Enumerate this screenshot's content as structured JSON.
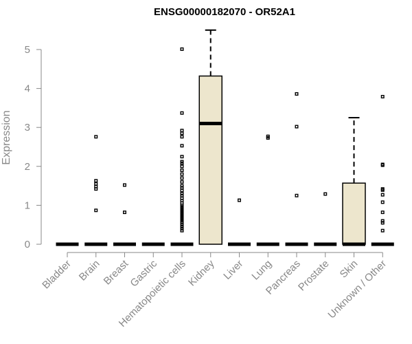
{
  "chart_data": {
    "type": "box",
    "title": "ENSG00000182070 - OR52A1",
    "xlabel": "",
    "ylabel": "Expression",
    "ylim": [
      0,
      5.5
    ],
    "yticks": [
      0,
      1,
      2,
      3,
      4,
      5
    ],
    "box_fill": "#ede6cd",
    "axis_color": "#888888",
    "grid": false,
    "categories": [
      "Bladder",
      "Brain",
      "Breast",
      "Gastric",
      "Hematopoietic cells",
      "Kidney",
      "Liver",
      "Lung",
      "Pancreas",
      "Prostate",
      "Skin",
      "Unknown / Other"
    ],
    "boxes": [
      {
        "q1": 0,
        "median": 0,
        "q3": 0,
        "whisker_low": 0,
        "whisker_high": 0,
        "outliers": []
      },
      {
        "q1": 0,
        "median": 0,
        "q3": 0,
        "whisker_low": 0,
        "whisker_high": 0,
        "outliers": [
          2.76,
          1.63,
          1.55,
          1.48,
          1.42,
          0.87
        ]
      },
      {
        "q1": 0,
        "median": 0,
        "q3": 0,
        "whisker_low": 0,
        "whisker_high": 0,
        "outliers": [
          1.52,
          0.82
        ]
      },
      {
        "q1": 0,
        "median": 0,
        "q3": 0,
        "whisker_low": 0,
        "whisker_high": 0,
        "outliers": []
      },
      {
        "q1": 0,
        "median": 0,
        "q3": 0,
        "whisker_low": 0,
        "whisker_high": 0,
        "outliers": [
          5.01,
          3.37,
          2.92,
          2.85,
          2.76,
          2.53,
          2.25,
          2.12,
          2.08,
          2.0,
          1.9,
          1.8,
          1.7,
          1.6,
          1.5,
          1.45,
          1.38,
          1.3,
          1.25,
          1.18,
          1.12,
          1.06,
          1.0,
          0.96,
          0.92,
          0.88,
          0.84,
          0.8,
          0.76,
          0.72,
          0.68,
          0.64,
          0.6,
          0.55,
          0.5,
          0.45,
          0.4,
          0.35
        ]
      },
      {
        "q1": 0,
        "median": 3.1,
        "q3": 4.32,
        "whisker_low": 0,
        "whisker_high": 5.5,
        "outliers": []
      },
      {
        "q1": 0,
        "median": 0,
        "q3": 0,
        "whisker_low": 0,
        "whisker_high": 0,
        "outliers": [
          1.13
        ]
      },
      {
        "q1": 0,
        "median": 0,
        "q3": 0,
        "whisker_low": 0,
        "whisker_high": 0,
        "outliers": [
          2.77,
          2.73
        ]
      },
      {
        "q1": 0,
        "median": 0,
        "q3": 0,
        "whisker_low": 0,
        "whisker_high": 0,
        "outliers": [
          3.86,
          3.02,
          1.25
        ]
      },
      {
        "q1": 0,
        "median": 0,
        "q3": 0,
        "whisker_low": 0,
        "whisker_high": 0,
        "outliers": [
          1.29
        ]
      },
      {
        "q1": 0,
        "median": 0,
        "q3": 1.57,
        "whisker_low": 0,
        "whisker_high": 3.25,
        "outliers": []
      },
      {
        "q1": 0,
        "median": 0,
        "q3": 0,
        "whisker_low": 0,
        "whisker_high": 0,
        "outliers": [
          3.79,
          2.05,
          2.03,
          1.42,
          1.39,
          1.27,
          1.08,
          0.82,
          0.6,
          0.55,
          0.35
        ]
      }
    ]
  }
}
